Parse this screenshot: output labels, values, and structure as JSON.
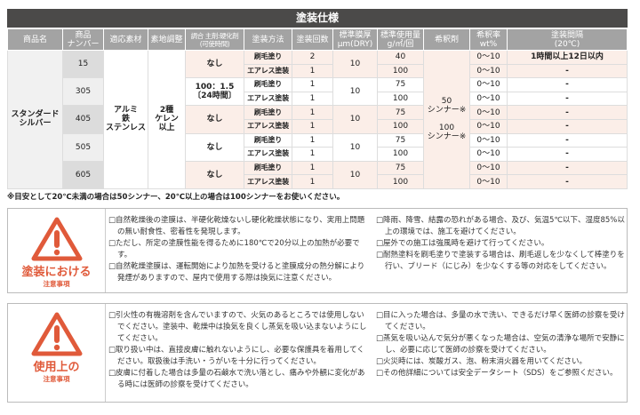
{
  "title": "塗装仕様",
  "headers": [
    "商品名",
    "商品\nナンバー",
    "適応素材",
    "素地調整",
    "調合 主剤:硬化剤\n(可使時間)",
    "塗装方法",
    "塗装回数",
    "標準膜厚\nμm(DRY)",
    "標準使用量\ng/㎡/回",
    "希釈剤",
    "希釈率\nwt%",
    "塗装間隔\n(20℃)"
  ],
  "product_name": "スタンダード\nシルバー",
  "material": "アルミ\n鉄\nステンレス",
  "surface_prep": "2種\nケレン\n以上",
  "thinner": "50\nシンナー※\n\n100\nシンナー※",
  "products": [
    {
      "number": "15",
      "mix": "なし",
      "thickness": "10",
      "rows": [
        {
          "method": "刷毛塗り",
          "coats": "2",
          "usage": "40",
          "dilution": "0〜10",
          "interval": "1時間以上12日以内"
        },
        {
          "method": "エアレス塗装",
          "coats": "1",
          "usage": "100",
          "dilution": "0〜10",
          "interval": "-"
        }
      ]
    },
    {
      "number": "305",
      "mix": "100：1.5\n〔24時間〕",
      "thickness": "10",
      "rows": [
        {
          "method": "刷毛塗り",
          "coats": "1",
          "usage": "75",
          "dilution": "0〜10",
          "interval": "-"
        },
        {
          "method": "エアレス塗装",
          "coats": "1",
          "usage": "100",
          "dilution": "0〜10",
          "interval": "-"
        }
      ]
    },
    {
      "number": "405",
      "mix": "なし",
      "thickness": "10",
      "rows": [
        {
          "method": "刷毛塗り",
          "coats": "1",
          "usage": "75",
          "dilution": "0〜10",
          "interval": "-"
        },
        {
          "method": "エアレス塗装",
          "coats": "1",
          "usage": "100",
          "dilution": "0〜10",
          "interval": "-"
        }
      ]
    },
    {
      "number": "505",
      "mix": "なし",
      "thickness": "10",
      "rows": [
        {
          "method": "刷毛塗り",
          "coats": "1",
          "usage": "75",
          "dilution": "0〜10",
          "interval": "-"
        },
        {
          "method": "エアレス塗装",
          "coats": "1",
          "usage": "100",
          "dilution": "0〜10",
          "interval": "-"
        }
      ]
    },
    {
      "number": "605",
      "mix": "なし",
      "thickness": "10",
      "rows": [
        {
          "method": "刷毛塗り",
          "coats": "1",
          "usage": "75",
          "dilution": "0〜10",
          "interval": "-"
        },
        {
          "method": "エアレス塗装",
          "coats": "1",
          "usage": "100",
          "dilution": "0〜10",
          "interval": "-"
        }
      ]
    }
  ],
  "footnote": "※目安として20℃未満の場合は50シンナー、20℃以上の場合は100シンナーをお使いください。",
  "cautions": [
    {
      "title": "塗装における",
      "subtitle": "注意事項",
      "left": [
        "□自然乾燥後の塗膜は、半硬化乾燥ないし硬化乾燥状態になり、実用上問題の無い耐食性、密着性を発現します。",
        "□ただし、所定の塗膜性能を得るために180℃で20分以上の加熱が必要です。",
        "□自然乾燥塗膜は、運転開始により加熱を受けると塗膜成分の熱分解により発煙がありますので、屋内で使用する際は換気に注意ください。"
      ],
      "right": [
        "□降雨、降雪、結露の恐れがある場合、及び、気温5℃以下、湿度85%以上の環境では、施工を避けてください。",
        "□屋外での施工は強風時を避けて行ってください。",
        "□耐熱塗料を刷毛塗りで塗装する場合は、刷毛返しを少なくして棒塗りを行い、ブリード（にじみ）を少なくする等の対応をしてください。"
      ]
    },
    {
      "title": "使用上の",
      "subtitle": "注意事項",
      "left": [
        "□引火性の有機溶剤を含んでいますので、火気のあるところでは使用しないでください。塗装中、乾燥中は換気を良くし蒸気を吸い込まないようにしてください。",
        "□取り扱い中は、直接皮膚に触れないようにし、必要な保護具を着用してください。取扱後は手洗い・うがいを十分に行ってください。",
        "□皮膚に付着した場合は多量の石鹸水で洗い落とし、痛みや外観に変化がある時には医師の診察を受けてください。"
      ],
      "right": [
        "□目に入った場合は、多量の水で洗い、できるだけ早く医師の診察を受けてください。",
        "□蒸気を吸い込んで気分が悪くなった場合は、空気の清浄な場所で安静にし、必要に応じて医師の診察を受けてください。",
        "□火災時には、炭酸ガス、泡、粉末消火器を用いてください。",
        "□その他詳細については安全データシート（SDS）をご参照ください。"
      ]
    }
  ],
  "colors": {
    "accent": "#e05a3a",
    "header": "#a3a3a3",
    "titlebar": "#4b4a49",
    "row_tint": "#fbeee8"
  }
}
